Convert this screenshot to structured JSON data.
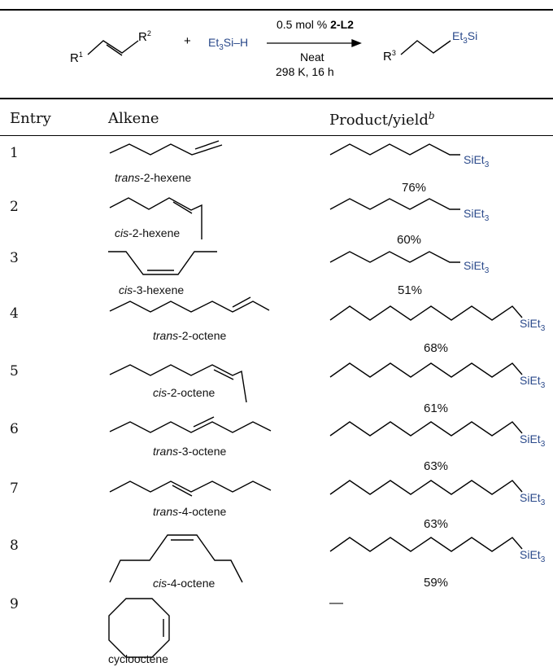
{
  "scheme": {
    "r1": "R",
    "r1_sup": "1",
    "r2": "R",
    "r2_sup": "2",
    "plus": "+",
    "silane_prefix": "Et",
    "silane_sub": "3",
    "silane_mid": "Si–",
    "silane_h": "H",
    "catalyst_amount": "0.5 mol % ",
    "catalyst_name": "2-L2",
    "condition_1": "Neat",
    "condition_2": "298 K, 16 h",
    "r3": "R",
    "r3_sup": "3",
    "product_si_prefix": "Et",
    "product_si_sub": "3",
    "product_si_suffix": "Si"
  },
  "table": {
    "headers": {
      "entry": "Entry",
      "alkene": "Alkene",
      "product": "Product/yield",
      "product_sup": "b"
    },
    "si_label": {
      "prefix": "SiEt",
      "sub": "3"
    },
    "rows": [
      {
        "entry": "1",
        "alkene_prefix": "trans",
        "alkene_suffix": "-2-hexene",
        "yield": "76%"
      },
      {
        "entry": "2",
        "alkene_prefix": "cis",
        "alkene_suffix": "-2-hexene",
        "yield": "60%"
      },
      {
        "entry": "3",
        "alkene_prefix": "cis",
        "alkene_suffix": "-3-hexene",
        "yield": "51%"
      },
      {
        "entry": "4",
        "alkene_prefix": "trans",
        "alkene_suffix": "-2-octene",
        "yield": "68%"
      },
      {
        "entry": "5",
        "alkene_prefix": "cis",
        "alkene_suffix": "-2-octene",
        "yield": "61%"
      },
      {
        "entry": "6",
        "alkene_prefix": "trans",
        "alkene_suffix": "-3-octene",
        "yield": "63%"
      },
      {
        "entry": "7",
        "alkene_prefix": "trans",
        "alkene_suffix": "-4-octene",
        "yield": "63%"
      },
      {
        "entry": "8",
        "alkene_prefix": "cis",
        "alkene_suffix": "-4-octene",
        "yield": "59%"
      },
      {
        "entry": "9",
        "alkene_prefix": "",
        "alkene_suffix": "cyclooctene",
        "yield": "—"
      }
    ]
  }
}
